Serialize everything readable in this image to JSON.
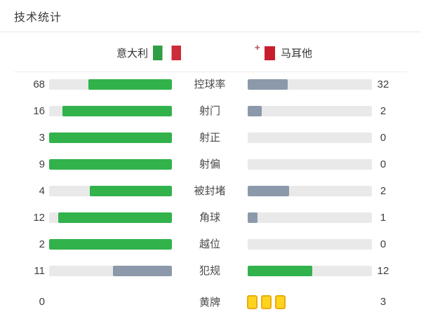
{
  "title": "技术统计",
  "header": {
    "home": {
      "name": "意大利",
      "flag_icon": "italy-flag"
    },
    "away": {
      "name": "马耳他",
      "flag_icon": "malta-flag"
    }
  },
  "colors": {
    "win_bar": "#31b24b",
    "lose_bar": "#8b99ab",
    "track": "#e9e9e9",
    "yellow_card_fill": "#ffd41f",
    "yellow_card_border": "#eaad0a",
    "italy_green": "#2f9e44",
    "italy_red": "#cd2b3a",
    "malta_red": "#c81d2e",
    "divider": "#e7e7e7",
    "value_text": "#3e3e3e",
    "label_text": "#4a4a4a"
  },
  "chart_data": {
    "type": "bar",
    "title": "技术统计",
    "layout": "horizontal mirrored bars; green = higher value side, slate = lower; tracks light gray",
    "categories": [
      "控球率",
      "射门",
      "射正",
      "射偏",
      "被封堵",
      "角球",
      "越位",
      "犯规",
      "黄牌"
    ],
    "series": [
      {
        "name": "意大利",
        "values": [
          68,
          16,
          3,
          9,
          4,
          12,
          2,
          11,
          0
        ]
      },
      {
        "name": "马耳他",
        "values": [
          32,
          2,
          0,
          0,
          2,
          1,
          0,
          12,
          3
        ]
      }
    ],
    "notes": "控球率 values are percentages (68 vs 32). 黄牌 row has no bars: away side shows 3 yellow card icons."
  }
}
